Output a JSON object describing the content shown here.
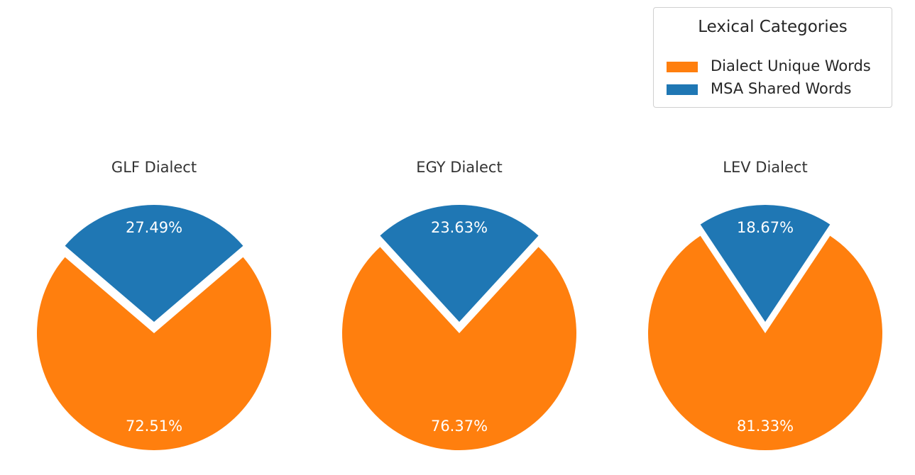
{
  "legend": {
    "title": "Lexical Categories",
    "entries": [
      {
        "label": "Dialect Unique Words",
        "color": "#ff7f0e"
      },
      {
        "label": "MSA Shared Words",
        "color": "#1f77b4"
      }
    ]
  },
  "chart_data": [
    {
      "type": "pie",
      "title": "GLF Dialect",
      "slices": [
        {
          "label": "MSA Shared Words",
          "value": 27.49,
          "display": "27.49%",
          "color": "#1f77b4",
          "exploded": true
        },
        {
          "label": "Dialect Unique Words",
          "value": 72.51,
          "display": "72.51%",
          "color": "#ff7f0e",
          "exploded": false
        }
      ]
    },
    {
      "type": "pie",
      "title": "EGY Dialect",
      "slices": [
        {
          "label": "MSA Shared Words",
          "value": 23.63,
          "display": "23.63%",
          "color": "#1f77b4",
          "exploded": true
        },
        {
          "label": "Dialect Unique Words",
          "value": 76.37,
          "display": "76.37%",
          "color": "#ff7f0e",
          "exploded": false
        }
      ]
    },
    {
      "type": "pie",
      "title": "LEV Dialect",
      "slices": [
        {
          "label": "MSA Shared Words",
          "value": 18.67,
          "display": "18.67%",
          "color": "#1f77b4",
          "exploded": true
        },
        {
          "label": "Dialect Unique Words",
          "value": 81.33,
          "display": "81.33%",
          "color": "#ff7f0e",
          "exploded": false
        }
      ]
    }
  ]
}
